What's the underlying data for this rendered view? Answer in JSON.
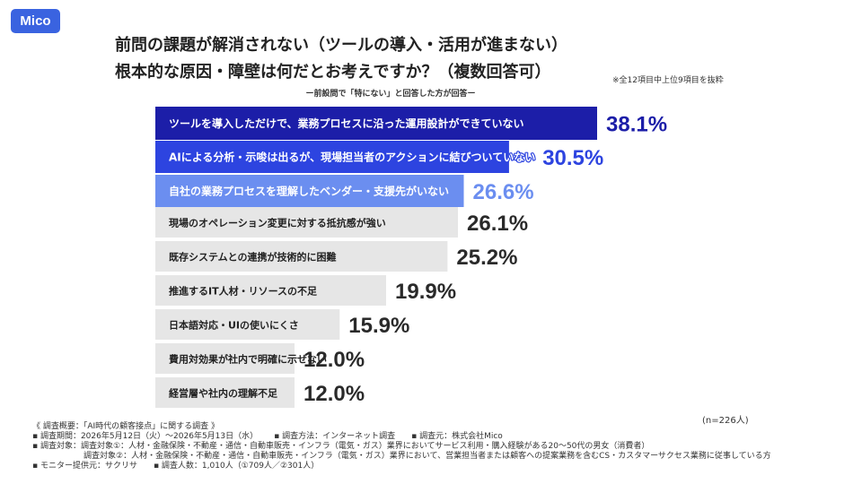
{
  "brand": {
    "logo_text": "Mico"
  },
  "header": {
    "title_line1": "前問の課題が解消されない（ツールの導入・活用が進まない）",
    "title_line2": "根本的な原因・障壁は何だとお考えですか？（複数回答可）",
    "note": "※全12項目中上位9項目を抜粋",
    "subtitle": "ー前設問で「特にない」と回答した方が回答ー"
  },
  "chart_data": {
    "type": "bar",
    "orientation": "horizontal",
    "unit": "%",
    "categories": [
      "ツールを導入しただけで、業務プロセスに沿った運用設計ができていない",
      "AIによる分析・示唆は出るが、現場担当者のアクションに結びついていない",
      "自社の業務プロセスを理解したベンダー・支援先がいない",
      "現場のオペレーション変更に対する抵抗感が強い",
      "既存システムとの連携が技術的に困難",
      "推進するIT人材・リソースの不足",
      "日本語対応・UIの使いにくさ",
      "費用対効果が社内で明確に示せない",
      "経営層や社内の理解不足"
    ],
    "values": [
      38.1,
      30.5,
      26.6,
      26.1,
      25.2,
      19.9,
      15.9,
      12.0,
      12.0
    ],
    "value_labels": [
      "38.1%",
      "30.5%",
      "26.6%",
      "26.1%",
      "25.2%",
      "19.9%",
      "15.9%",
      "12.0%",
      "12.0%"
    ],
    "xlim": [
      0,
      38.1
    ],
    "grid": false,
    "legend": "none",
    "colors": {
      "rank1_bar": "#1c1ea8",
      "rank2_bar": "#2d44e0",
      "rank3_bar": "#6b8ef0",
      "other_bar": "#e6e6e6",
      "rank1_value": "#1c1ea8",
      "rank2_value": "#2d44e0",
      "rank3_value": "#6b8ef0",
      "other_value": "#2a2a2a",
      "highlight_label": "#ffffff",
      "other_label": "#222222"
    }
  },
  "sample_size": "(n=226人)",
  "footer": {
    "line1": "《 調査概要：「AI時代の顧客接点」に関する調査 》",
    "period": "▪ 調査期間：2026年5月12日（火）〜2026年5月13日（水）",
    "method": "▪ 調査方法：インターネット調査",
    "organizer": "▪ 調査元：株式会社Mico",
    "target1": "▪ 調査対象：調査対象①：人材・金融保険・不動産・通信・自動車販売・インフラ（電気・ガス）業界においてサービス利用・購入経験がある20〜50代の男女（消費者）",
    "target2": "調査対象②：人材・金融保険・不動産・通信・自動車販売・インフラ（電気・ガス）業界において、営業担当者または顧客への提案業務を含むCS・カスタマーサクセス業務に従事している方",
    "provider": "▪ モニター提供元：サクリサ",
    "respondents": "▪ 調査人数：1,010人（①709人／②301人）"
  }
}
